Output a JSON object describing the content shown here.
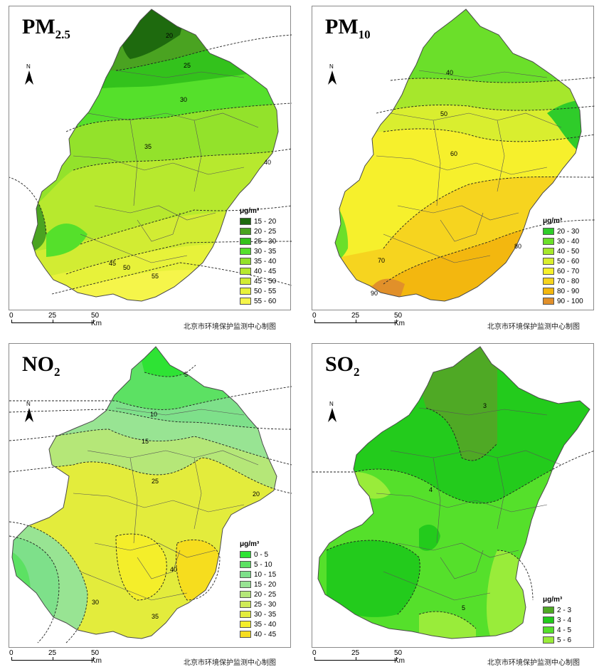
{
  "panels": [
    {
      "id": "pm25",
      "title_main": "PM",
      "title_sub": "2.5",
      "unit": "μg/m³",
      "legend": [
        {
          "label": "15 - 20",
          "color": "#1e6a0e"
        },
        {
          "label": "20 - 25",
          "color": "#4aa321"
        },
        {
          "label": "25 - 30",
          "color": "#33c21c"
        },
        {
          "label": "30 - 35",
          "color": "#55e02b"
        },
        {
          "label": "35 - 40",
          "color": "#93e22b"
        },
        {
          "label": "40 - 45",
          "color": "#b7e92e"
        },
        {
          "label": "45 - 50",
          "color": "#d2ec33"
        },
        {
          "label": "50 - 55",
          "color": "#e7f23a"
        },
        {
          "label": "55 - 60",
          "color": "#f5f54a"
        }
      ],
      "contour_labels": [
        "20",
        "25",
        "30",
        "35",
        "40",
        "45",
        "50",
        "55"
      ]
    },
    {
      "id": "pm10",
      "title_main": "PM",
      "title_sub": "10",
      "unit": "μg/m³",
      "legend": [
        {
          "label": "20 - 30",
          "color": "#2fcc2a"
        },
        {
          "label": "30 - 40",
          "color": "#6bdf2a"
        },
        {
          "label": "40 - 50",
          "color": "#a6e72c"
        },
        {
          "label": "50 - 60",
          "color": "#d9ee2f"
        },
        {
          "label": "60 - 70",
          "color": "#f6f02c"
        },
        {
          "label": "70 - 80",
          "color": "#f6d41f"
        },
        {
          "label": "80 - 90",
          "color": "#f3b70f"
        },
        {
          "label": "90 - 100",
          "color": "#e1902a"
        }
      ],
      "contour_labels": [
        "40",
        "50",
        "60",
        "70",
        "80",
        "90"
      ]
    },
    {
      "id": "no2",
      "title_main": "NO",
      "title_sub": "2",
      "unit": "μg/m³",
      "legend": [
        {
          "label": "0 - 5",
          "color": "#2ee334"
        },
        {
          "label": "5 - 10",
          "color": "#5ce163"
        },
        {
          "label": "10 - 15",
          "color": "#7ee08a"
        },
        {
          "label": "15 - 20",
          "color": "#98e493"
        },
        {
          "label": "20 - 25",
          "color": "#b5e778"
        },
        {
          "label": "25 - 30",
          "color": "#cfea56"
        },
        {
          "label": "30 - 35",
          "color": "#e3ec3c"
        },
        {
          "label": "35 - 40",
          "color": "#f4ee2a"
        },
        {
          "label": "40 - 45",
          "color": "#f6dd1e"
        }
      ],
      "contour_labels": [
        "5",
        "10",
        "15",
        "20",
        "25",
        "30",
        "35",
        "40"
      ]
    },
    {
      "id": "so2",
      "title_main": "SO",
      "title_sub": "2",
      "unit": "μg/m³",
      "legend": [
        {
          "label": "2 - 3",
          "color": "#4fa925"
        },
        {
          "label": "3 - 4",
          "color": "#23cb1c"
        },
        {
          "label": "4 - 5",
          "color": "#55e02b"
        },
        {
          "label": "5 - 6",
          "color": "#99ec3a"
        }
      ],
      "contour_labels": [
        "3",
        "4",
        "5"
      ]
    }
  ],
  "north_letter": "N",
  "scale": {
    "t0": "0",
    "t1": "25",
    "t2": "50 Km"
  },
  "credit": "北京市环境保护监测中心制图"
}
